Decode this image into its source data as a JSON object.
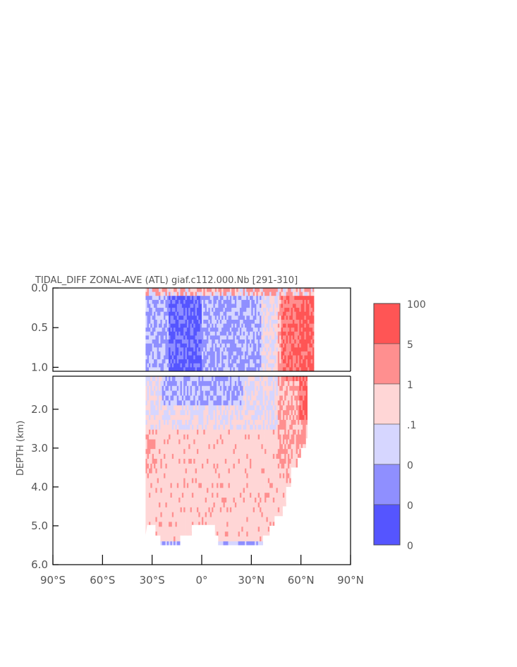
{
  "chart_data": {
    "type": "heatmap",
    "title": "TIDAL_DIFF ZONAL-AVE (ATL) giaf.c112.000.Nb [291-310]",
    "ylabel": "DEPTH (km)",
    "xlabel": "",
    "xlim": [
      -90,
      90
    ],
    "ylim": [
      0,
      6
    ],
    "upper_panel_ylim": [
      0,
      1.05
    ],
    "lower_panel_ylim": [
      1.15,
      6
    ],
    "x_ticks": [
      -90,
      -60,
      -30,
      0,
      30,
      60,
      90
    ],
    "x_tick_labels": [
      "90°S",
      "60°S",
      "30°S",
      "0°",
      "30°N",
      "60°N",
      "90°N"
    ],
    "y_ticks_upper": [
      0.0,
      0.5,
      1.0
    ],
    "y_tick_labels_upper": [
      "0.0",
      "0.5",
      "1.0"
    ],
    "y_ticks_lower": [
      2.0,
      3.0,
      4.0,
      5.0,
      6.0
    ],
    "y_tick_labels_lower": [
      "2.0",
      "3.0",
      "4.0",
      "5.0",
      "6.0"
    ],
    "grid": false,
    "legend_placement": "right",
    "colorbar": {
      "labels": [
        "100",
        "5",
        "1",
        ".1",
        "0",
        "0",
        "0"
      ],
      "colors": [
        "#ff5555",
        "#ff8f8f",
        "#ffd6d6",
        "#d6d6ff",
        "#8f8fff",
        "#5555ff"
      ]
    },
    "bottom_profile": [
      {
        "lat": -34,
        "depth": 5.25
      },
      {
        "lat": -33,
        "depth": 4.98
      },
      {
        "lat": -28,
        "depth": 4.98
      },
      {
        "lat": -28,
        "depth": 5.25
      },
      {
        "lat": -25,
        "depth": 5.25
      },
      {
        "lat": -25,
        "depth": 5.5
      },
      {
        "lat": -13,
        "depth": 5.5
      },
      {
        "lat": -13,
        "depth": 5.25
      },
      {
        "lat": -6,
        "depth": 5.25
      },
      {
        "lat": -6,
        "depth": 4.98
      },
      {
        "lat": 8,
        "depth": 4.98
      },
      {
        "lat": 8,
        "depth": 5.25
      },
      {
        "lat": 10,
        "depth": 5.25
      },
      {
        "lat": 10,
        "depth": 5.5
      },
      {
        "lat": 37,
        "depth": 5.5
      },
      {
        "lat": 37,
        "depth": 5.25
      },
      {
        "lat": 41,
        "depth": 5.25
      },
      {
        "lat": 41,
        "depth": 5.0
      },
      {
        "lat": 44,
        "depth": 5.0
      },
      {
        "lat": 44,
        "depth": 4.75
      },
      {
        "lat": 49,
        "depth": 4.75
      },
      {
        "lat": 49,
        "depth": 4.5
      },
      {
        "lat": 51,
        "depth": 4.5
      },
      {
        "lat": 51,
        "depth": 4.0
      },
      {
        "lat": 54,
        "depth": 4.0
      },
      {
        "lat": 54,
        "depth": 3.5
      },
      {
        "lat": 58,
        "depth": 3.5
      },
      {
        "lat": 58,
        "depth": 3.25
      },
      {
        "lat": 60,
        "depth": 3.25
      },
      {
        "lat": 60,
        "depth": 3.0
      },
      {
        "lat": 63,
        "depth": 3.0
      },
      {
        "lat": 63,
        "depth": 2.75
      },
      {
        "lat": 64,
        "depth": 2.75
      },
      {
        "lat": 64,
        "depth": 1.1
      },
      {
        "lat": 68,
        "depth": 1.1
      },
      {
        "lat": 68,
        "depth": 0
      }
    ]
  }
}
